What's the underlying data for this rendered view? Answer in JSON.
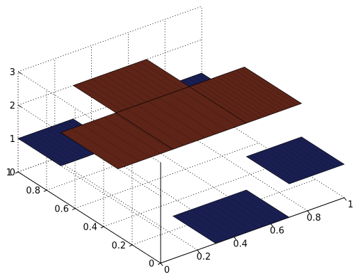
{
  "chart_data": {
    "type": "surface3d",
    "title": "",
    "xlabel": "",
    "ylabel": "",
    "zlabel": "",
    "xlim": [
      0,
      1
    ],
    "ylim": [
      0,
      1
    ],
    "zlim": [
      0,
      3
    ],
    "grid": true,
    "x_ticks": [
      "0",
      "0.2",
      "0.4",
      "0.6",
      "0.8",
      "1"
    ],
    "y_ticks": [
      "0",
      "0.2",
      "0.4",
      "0.6",
      "0.8",
      "1"
    ],
    "z_ticks": [
      "0",
      "1",
      "2",
      "3"
    ],
    "colors": {
      "low": "#1a1f52",
      "high": "#5e2418",
      "grid": "#000000"
    },
    "patches": [
      {
        "x": [
          0.3,
          0.7
        ],
        "y": [
          0.0,
          0.3
        ],
        "z": 0
      },
      {
        "x": [
          0.0,
          0.3
        ],
        "y": [
          0.7,
          1.0
        ],
        "z": 1
      },
      {
        "x": [
          0.7,
          1.0
        ],
        "y": [
          0.7,
          1.0
        ],
        "z": 1
      },
      {
        "x": [
          0.7,
          1.0
        ],
        "y": [
          0.0,
          0.3
        ],
        "z": 1
      },
      {
        "x": [
          0.0,
          0.7
        ],
        "y": [
          0.3,
          0.7
        ],
        "z": 2
      },
      {
        "x": [
          0.3,
          0.7
        ],
        "y": [
          0.7,
          1.0
        ],
        "z": 2
      },
      {
        "x": [
          0.7,
          1.0
        ],
        "y": [
          0.3,
          0.7
        ],
        "z": 2
      },
      {
        "x": [
          0.3,
          1.0
        ],
        "y": [
          0.3,
          0.7
        ],
        "z": 2
      }
    ]
  }
}
